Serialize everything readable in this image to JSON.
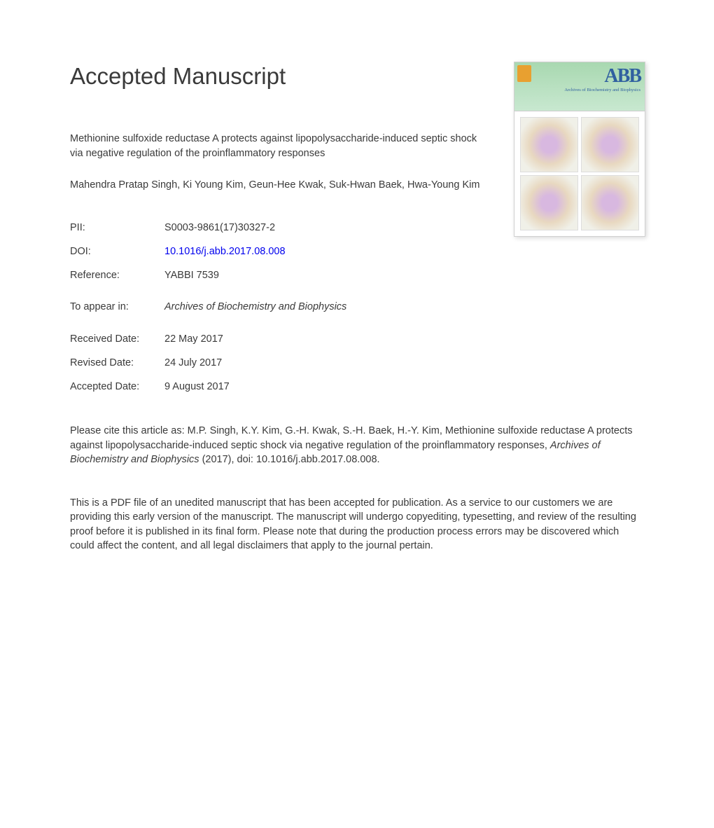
{
  "heading": "Accepted Manuscript",
  "cover": {
    "abb": "ABB",
    "subtitle": "Archives of Biochemistry and Biophysics"
  },
  "title": "Methionine sulfoxide reductase A protects against lipopolysaccharide-induced septic shock via negative regulation of the proinflammatory responses",
  "authors": "Mahendra Pratap Singh, Ki Young Kim, Geun-Hee Kwak, Suk-Hwan Baek, Hwa-Young Kim",
  "meta": {
    "pii_label": "PII:",
    "pii_value": "S0003-9861(17)30327-2",
    "doi_label": "DOI:",
    "doi_value": "10.1016/j.abb.2017.08.008",
    "ref_label": "Reference:",
    "ref_value": "YABBI 7539",
    "appear_label": "To appear in:",
    "appear_value": "Archives of Biochemistry and Biophysics",
    "received_label": "Received Date:",
    "received_value": "22 May 2017",
    "revised_label": "Revised Date:",
    "revised_value": "24 July 2017",
    "accepted_label": "Accepted Date:",
    "accepted_value": "9 August 2017"
  },
  "cite": {
    "prefix": "Please cite this article as: M.P. Singh, K.Y. Kim, G.-H. Kwak, S.-H. Baek, H.-Y. Kim, Methionine sulfoxide reductase A protects against lipopolysaccharide-induced septic shock via negative regulation of the proinflammatory responses, ",
    "journal": "Archives of Biochemistry and Biophysics",
    "suffix": " (2017), doi: 10.1016/j.abb.2017.08.008."
  },
  "disclaimer": "This is a PDF file of an unedited manuscript that has been accepted for publication. As a service to our customers we are providing this early version of the manuscript. The manuscript will undergo copyediting, typesetting, and review of the resulting proof before it is published in its final form. Please note that during the production process errors may be discovered which could affect the content, and all legal disclaimers that apply to the journal pertain."
}
